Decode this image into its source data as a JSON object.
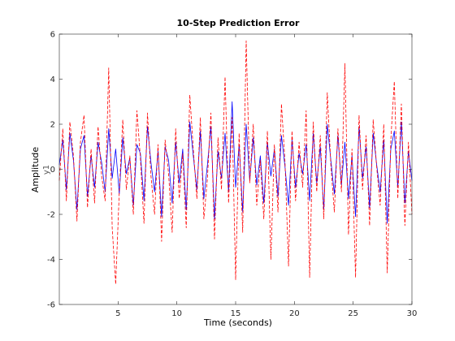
{
  "chart_data": {
    "type": "line",
    "title": "10-Step Prediction Error",
    "xlabel": "Time (seconds)",
    "ylabel": "Amplitude",
    "channel_label": "y1",
    "xlim": [
      0,
      30
    ],
    "ylim": [
      -6,
      6
    ],
    "xticks": [
      5,
      10,
      15,
      20,
      25,
      30
    ],
    "yticks": [
      -6,
      -4,
      -2,
      0,
      2,
      4,
      6
    ],
    "grid": false,
    "series": [
      {
        "color": "#0000ff",
        "style": "solid",
        "x": [
          0.0,
          0.3,
          0.6,
          0.9,
          1.2,
          1.5,
          1.8,
          2.1,
          2.4,
          2.7,
          3.0,
          3.3,
          3.6,
          3.9,
          4.2,
          4.5,
          4.8,
          5.1,
          5.4,
          5.7,
          6.0,
          6.3,
          6.6,
          6.9,
          7.2,
          7.5,
          7.8,
          8.1,
          8.4,
          8.7,
          9.0,
          9.3,
          9.6,
          9.9,
          10.2,
          10.5,
          10.8,
          11.1,
          11.4,
          11.7,
          12.0,
          12.3,
          12.6,
          12.9,
          13.2,
          13.5,
          13.8,
          14.1,
          14.4,
          14.7,
          15.0,
          15.3,
          15.6,
          15.9,
          16.2,
          16.5,
          16.8,
          17.1,
          17.4,
          17.7,
          18.0,
          18.3,
          18.6,
          18.9,
          19.2,
          19.5,
          19.8,
          20.1,
          20.4,
          20.7,
          21.0,
          21.3,
          21.6,
          21.9,
          22.2,
          22.5,
          22.8,
          23.1,
          23.4,
          23.7,
          24.0,
          24.3,
          24.6,
          24.9,
          25.2,
          25.5,
          25.8,
          26.1,
          26.4,
          26.7,
          27.0,
          27.3,
          27.6,
          27.9,
          28.2,
          28.5,
          28.8,
          29.1,
          29.4,
          29.7,
          30.0
        ],
        "y": [
          0.2,
          1.3,
          -0.9,
          1.6,
          0.4,
          -1.8,
          0.9,
          1.5,
          -1.2,
          0.6,
          -0.8,
          1.2,
          0.3,
          -1.0,
          1.8,
          -0.4,
          0.9,
          -1.1,
          1.4,
          -0.2,
          0.5,
          -1.6,
          1.1,
          0.7,
          -1.4,
          1.9,
          0.3,
          -1.0,
          0.8,
          -2.1,
          1.0,
          0.4,
          -1.5,
          1.2,
          -0.6,
          0.9,
          -1.8,
          2.1,
          0.6,
          -0.9,
          1.7,
          -1.3,
          0.2,
          1.9,
          -2.2,
          0.8,
          -0.4,
          1.6,
          -1.0,
          3.0,
          -0.8,
          1.1,
          -1.9,
          2.0,
          -0.5,
          1.4,
          -0.7,
          0.6,
          -1.5,
          1.2,
          -0.3,
          0.9,
          -1.2,
          1.5,
          0.1,
          -1.6,
          1.3,
          -0.8,
          0.7,
          -0.2,
          1.1,
          -1.4,
          1.6,
          -0.6,
          1.0,
          -1.8,
          2.0,
          0.4,
          -1.1,
          1.5,
          -0.7,
          1.2,
          -1.3,
          0.6,
          -2.1,
          1.9,
          -0.4,
          1.0,
          -1.7,
          1.6,
          0.2,
          -1.0,
          1.3,
          -2.4,
          0.9,
          1.7,
          -0.8,
          2.1,
          -1.5,
          0.8,
          -0.5
        ]
      },
      {
        "color": "#ff0000",
        "style": "dashed",
        "x": [
          0.0,
          0.3,
          0.6,
          0.9,
          1.2,
          1.5,
          1.8,
          2.1,
          2.4,
          2.7,
          3.0,
          3.3,
          3.6,
          3.9,
          4.2,
          4.5,
          4.8,
          5.1,
          5.4,
          5.7,
          6.0,
          6.3,
          6.6,
          6.9,
          7.2,
          7.5,
          7.8,
          8.1,
          8.4,
          8.7,
          9.0,
          9.3,
          9.6,
          9.9,
          10.2,
          10.5,
          10.8,
          11.1,
          11.4,
          11.7,
          12.0,
          12.3,
          12.6,
          12.9,
          13.2,
          13.5,
          13.8,
          14.1,
          14.4,
          14.7,
          15.0,
          15.3,
          15.6,
          15.9,
          16.2,
          16.5,
          16.8,
          17.1,
          17.4,
          17.7,
          18.0,
          18.3,
          18.6,
          18.9,
          19.2,
          19.5,
          19.8,
          20.1,
          20.4,
          20.7,
          21.0,
          21.3,
          21.6,
          21.9,
          22.2,
          22.5,
          22.8,
          23.1,
          23.4,
          23.7,
          24.0,
          24.3,
          24.6,
          24.9,
          25.2,
          25.5,
          25.8,
          26.1,
          26.4,
          26.7,
          27.0,
          27.3,
          27.6,
          27.9,
          28.2,
          28.5,
          28.8,
          29.1,
          29.4,
          29.7,
          30.0
        ],
        "y": [
          -0.5,
          1.8,
          -1.4,
          2.1,
          0.6,
          -2.3,
          1.2,
          2.4,
          -1.7,
          0.9,
          -1.5,
          1.9,
          -0.3,
          -1.4,
          4.5,
          -2.6,
          -5.1,
          -1.0,
          2.2,
          -0.9,
          0.6,
          -2.0,
          2.6,
          0.5,
          -2.4,
          2.5,
          -0.3,
          -2.0,
          1.1,
          -3.2,
          1.3,
          -0.2,
          -2.8,
          1.8,
          -1.3,
          0.7,
          -2.6,
          3.3,
          0.9,
          -1.3,
          2.3,
          -2.2,
          -0.4,
          2.5,
          -3.1,
          1.4,
          -0.9,
          4.1,
          -1.5,
          2.3,
          -4.9,
          1.6,
          -2.8,
          5.7,
          -0.6,
          2.0,
          -1.6,
          0.4,
          -2.2,
          1.7,
          -4.0,
          1.1,
          -1.9,
          2.9,
          0.3,
          -4.3,
          1.7,
          -1.4,
          1.2,
          -0.8,
          2.6,
          -4.8,
          2.1,
          -1.0,
          1.5,
          -2.2,
          3.4,
          0.2,
          -1.9,
          1.8,
          -1.0,
          4.7,
          -2.9,
          0.9,
          -4.8,
          2.4,
          -0.9,
          1.5,
          -2.5,
          2.2,
          0.1,
          -1.6,
          2.0,
          -4.6,
          1.3,
          3.9,
          -1.3,
          2.9,
          -2.5,
          1.2,
          -2.0
        ]
      }
    ]
  }
}
